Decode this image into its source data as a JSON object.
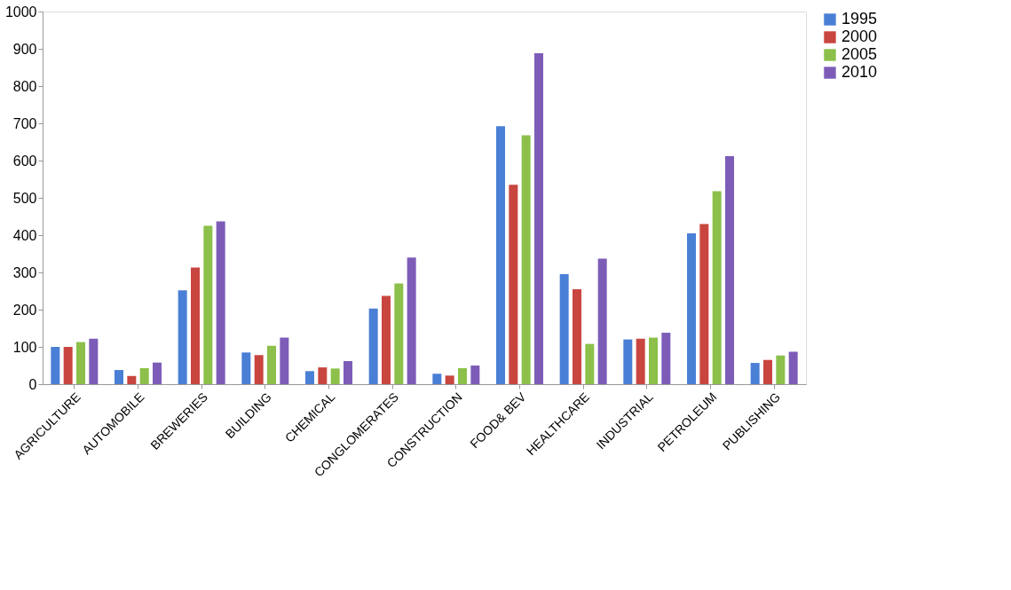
{
  "chart_data": {
    "type": "bar",
    "categories": [
      "AGRICULTURE",
      "AUTOMOBILE",
      "BREWERIES",
      "BUILDING",
      "CHEMICAL",
      "CONGLOMERATES",
      "CONSTRUCTION",
      "FOOD& BEV",
      "HEALTHCARE",
      "INDUSTRIAL",
      "PETROLEUM",
      "PUBLISHING"
    ],
    "series": [
      {
        "name": "1995",
        "color": "#4a7fd6",
        "values": [
          100,
          38,
          252,
          85,
          35,
          203,
          28,
          692,
          295,
          120,
          405,
          57
        ]
      },
      {
        "name": "2000",
        "color": "#c9453f",
        "values": [
          100,
          22,
          313,
          78,
          45,
          237,
          23,
          535,
          255,
          122,
          430,
          65
        ]
      },
      {
        "name": "2005",
        "color": "#8cc04a",
        "values": [
          113,
          43,
          425,
          103,
          42,
          270,
          43,
          668,
          108,
          125,
          518,
          77
        ]
      },
      {
        "name": "2010",
        "color": "#7d5cb8",
        "values": [
          122,
          58,
          437,
          125,
          62,
          340,
          50,
          888,
          337,
          138,
          612,
          87
        ]
      }
    ],
    "ylim": [
      0,
      1000
    ],
    "yticks": [
      0,
      100,
      200,
      300,
      400,
      500,
      600,
      700,
      800,
      900,
      1000
    ],
    "grid": false,
    "legend": "right"
  }
}
